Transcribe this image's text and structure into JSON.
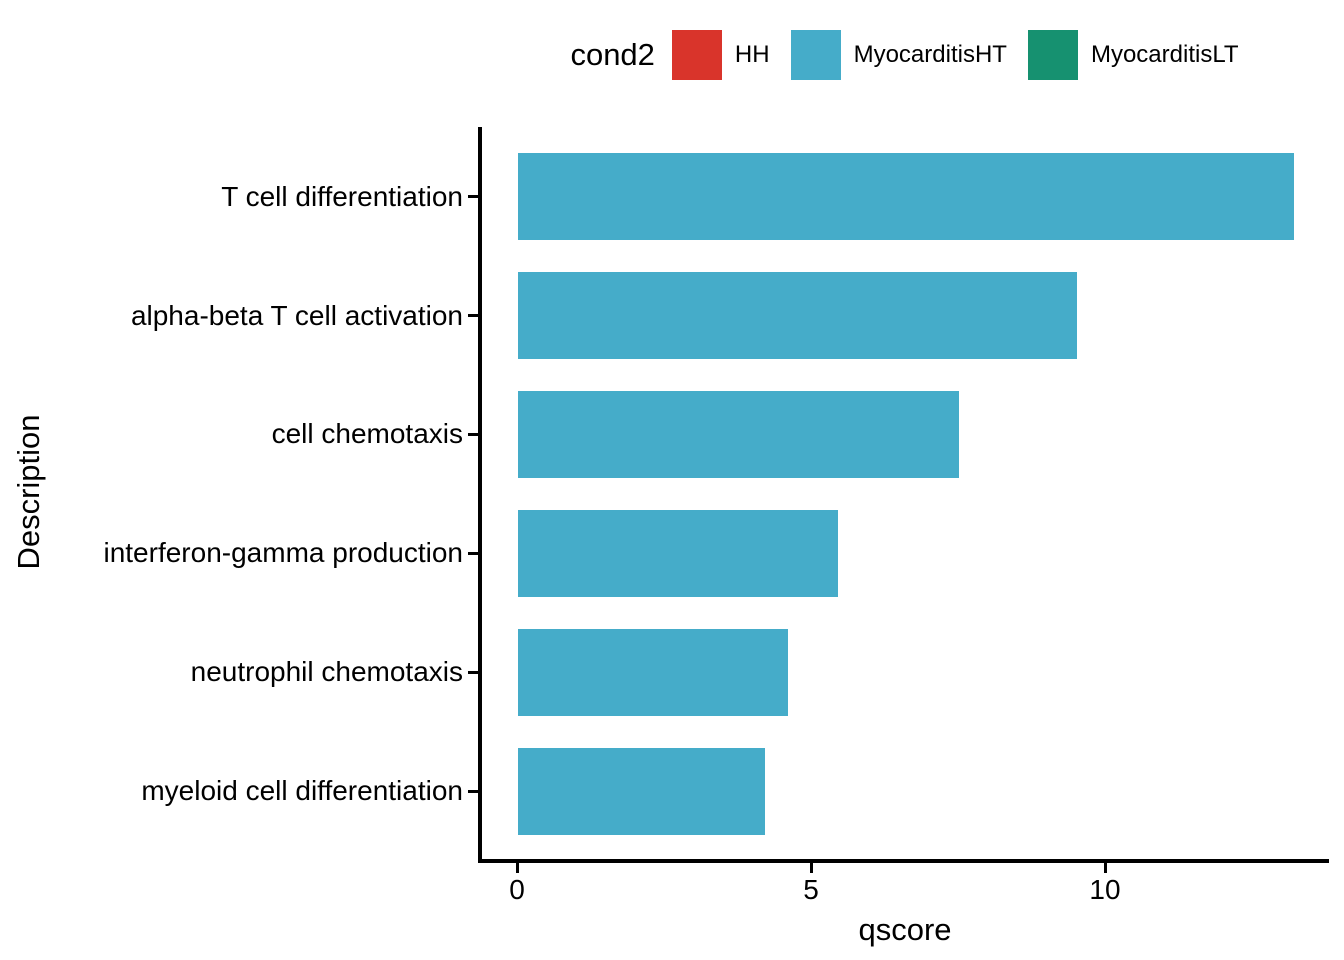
{
  "figure": {
    "background": "#ffffff"
  },
  "legend": {
    "title": "cond2",
    "position": "top",
    "items": [
      {
        "label": "HH",
        "color": "#d9342b"
      },
      {
        "label": "MyocarditisHT",
        "color": "#45acc9"
      },
      {
        "label": "MyocarditisLT",
        "color": "#169170"
      }
    ]
  },
  "chart_data": {
    "type": "bar",
    "orientation": "horizontal",
    "title": "",
    "xlabel": "qscore",
    "ylabel": "Description",
    "categories": [
      "T cell differentiation",
      "alpha-beta T cell activation",
      "cell chemotaxis",
      "interferon-gamma production",
      "neutrophil chemotaxis",
      "myeloid cell differentiation"
    ],
    "series": [
      {
        "name": "MyocarditisHT",
        "color": "#45acc9",
        "values": [
          13.2,
          9.5,
          7.5,
          5.45,
          4.6,
          4.2
        ]
      }
    ],
    "x_ticks": [
      {
        "label": "0",
        "value": 0
      },
      {
        "label": "5",
        "value": 5
      },
      {
        "label": "10",
        "value": 10
      }
    ],
    "xlim": [
      0,
      13.8
    ],
    "grid": false,
    "legend_position": "top",
    "axis_color": "#000000",
    "text_color": "#000000"
  }
}
